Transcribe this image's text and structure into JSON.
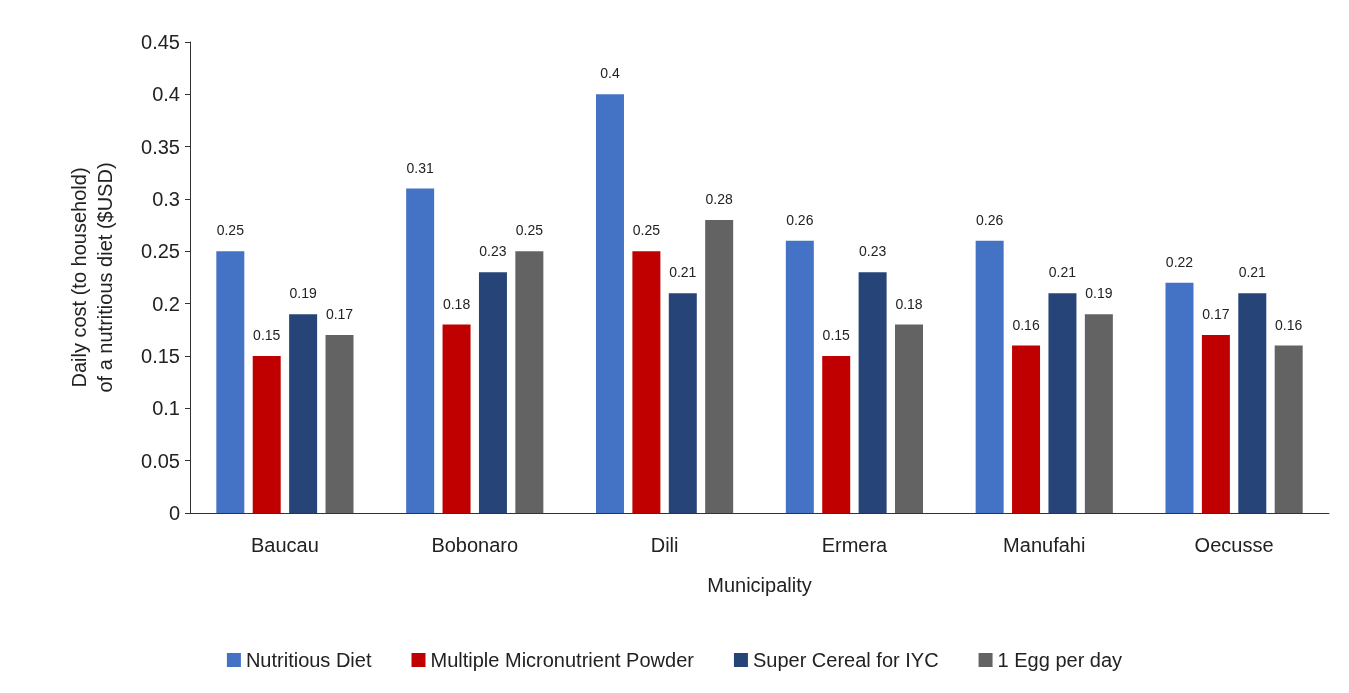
{
  "chart_data": {
    "type": "bar",
    "xlabel": "Municipality",
    "ylabel": "Daily cost (to household)\nof a nutritious diet ($USD)",
    "categories": [
      "Baucau",
      "Bobonaro",
      "Dili",
      "Ermera",
      "Manufahi",
      "Oecusse"
    ],
    "series": [
      {
        "name": "Nutritious Diet",
        "color": "#4472c4",
        "values": [
          0.25,
          0.31,
          0.4,
          0.26,
          0.26,
          0.22
        ]
      },
      {
        "name": "Multiple Micronutrient Powder",
        "color": "#c00000",
        "values": [
          0.15,
          0.18,
          0.25,
          0.15,
          0.16,
          0.17
        ]
      },
      {
        "name": "Super Cereal for IYC",
        "color": "#264478",
        "values": [
          0.19,
          0.23,
          0.21,
          0.23,
          0.21,
          0.21
        ]
      },
      {
        "name": "1 Egg per day",
        "color": "#636363",
        "values": [
          0.17,
          0.25,
          0.28,
          0.18,
          0.19,
          0.16
        ]
      }
    ],
    "ylim": [
      0,
      0.45
    ],
    "yticks": [
      0,
      0.05,
      0.1,
      0.15,
      0.2,
      0.25,
      0.3,
      0.35,
      0.4,
      0.45
    ],
    "grid": false,
    "legend": "bottom",
    "data_labels": true
  }
}
